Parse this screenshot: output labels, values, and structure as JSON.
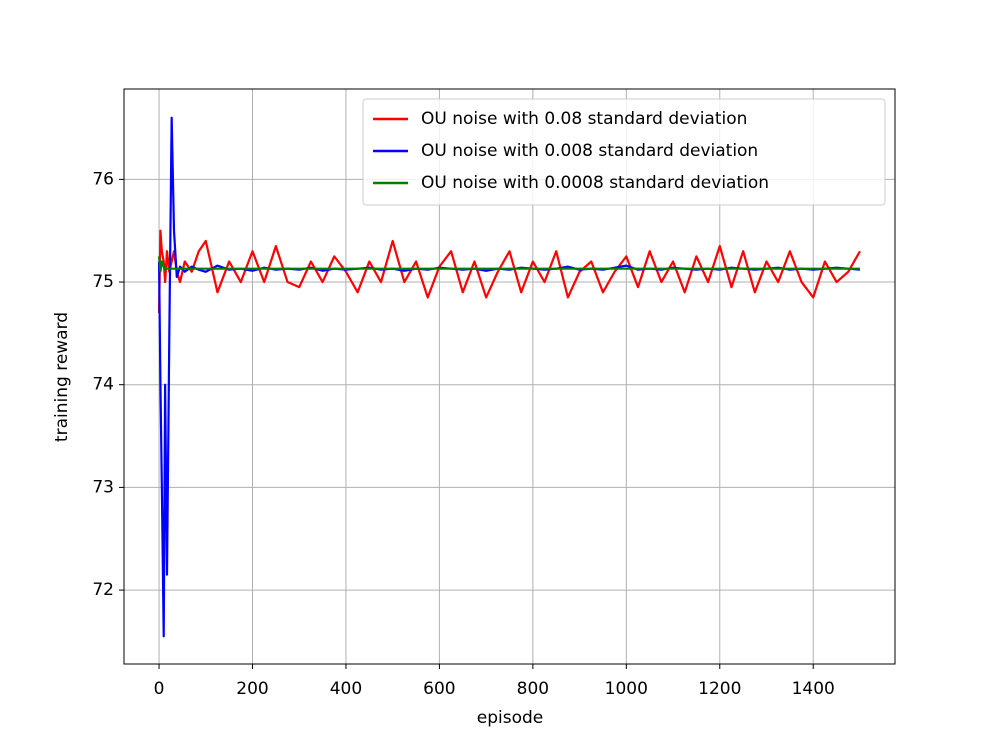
{
  "chart_data": {
    "type": "line",
    "xlabel": "episode",
    "ylabel": "training reward",
    "x": [
      0,
      3,
      6,
      10,
      13,
      17,
      22,
      27,
      32,
      38,
      45,
      55,
      70,
      85,
      100,
      125,
      150,
      175,
      200,
      225,
      250,
      275,
      300,
      325,
      350,
      375,
      400,
      425,
      450,
      475,
      500,
      525,
      550,
      575,
      600,
      625,
      650,
      675,
      700,
      725,
      750,
      775,
      800,
      825,
      850,
      875,
      900,
      925,
      950,
      975,
      1000,
      1025,
      1050,
      1075,
      1100,
      1125,
      1150,
      1175,
      1200,
      1225,
      1250,
      1275,
      1300,
      1325,
      1350,
      1375,
      1400,
      1425,
      1450,
      1475,
      1500
    ],
    "series": [
      {
        "name": "OU noise with 0.08 standard deviation",
        "color": "#ff0000",
        "values": [
          74.7,
          75.5,
          75.3,
          75.2,
          75.0,
          75.3,
          75.1,
          75.2,
          75.3,
          75.1,
          75.0,
          75.2,
          75.1,
          75.3,
          75.4,
          74.9,
          75.2,
          75.0,
          75.3,
          75.0,
          75.35,
          75.0,
          74.95,
          75.2,
          75.0,
          75.25,
          75.1,
          74.9,
          75.2,
          75.0,
          75.4,
          75.0,
          75.2,
          74.85,
          75.15,
          75.3,
          74.9,
          75.2,
          74.85,
          75.1,
          75.3,
          74.9,
          75.2,
          75.0,
          75.3,
          74.85,
          75.1,
          75.2,
          74.9,
          75.1,
          75.25,
          74.95,
          75.3,
          75.0,
          75.2,
          74.9,
          75.25,
          75.0,
          75.35,
          74.95,
          75.3,
          74.9,
          75.2,
          75.0,
          75.3,
          75.0,
          74.85,
          75.2,
          75.0,
          75.1,
          75.3
        ]
      },
      {
        "name": "OU noise with 0.008 standard deviation",
        "color": "#0000ff",
        "values": [
          75.2,
          74.0,
          73.0,
          71.55,
          74.0,
          72.15,
          74.5,
          76.6,
          75.5,
          75.05,
          75.15,
          75.1,
          75.15,
          75.12,
          75.1,
          75.16,
          75.12,
          75.13,
          75.11,
          75.14,
          75.12,
          75.13,
          75.12,
          75.14,
          75.11,
          75.13,
          75.12,
          75.13,
          75.14,
          75.12,
          75.13,
          75.11,
          75.13,
          75.12,
          75.14,
          75.13,
          75.12,
          75.13,
          75.11,
          75.13,
          75.12,
          75.14,
          75.13,
          75.12,
          75.13,
          75.15,
          75.12,
          75.13,
          75.12,
          75.14,
          75.16,
          75.12,
          75.13,
          75.12,
          75.14,
          75.13,
          75.12,
          75.13,
          75.12,
          75.14,
          75.13,
          75.12,
          75.13,
          75.14,
          75.12,
          75.13,
          75.12,
          75.13,
          75.14,
          75.13,
          75.12
        ]
      },
      {
        "name": "OU noise with 0.0008 standard deviation",
        "color": "#008000",
        "values": [
          75.25,
          75.1,
          75.2,
          75.15,
          75.12,
          75.13,
          75.13,
          75.13,
          75.13,
          75.13,
          75.13,
          75.13,
          75.13,
          75.13,
          75.13,
          75.13,
          75.13,
          75.13,
          75.13,
          75.13,
          75.13,
          75.13,
          75.13,
          75.13,
          75.13,
          75.13,
          75.13,
          75.13,
          75.13,
          75.13,
          75.13,
          75.13,
          75.13,
          75.13,
          75.13,
          75.13,
          75.13,
          75.13,
          75.13,
          75.13,
          75.13,
          75.13,
          75.13,
          75.13,
          75.13,
          75.13,
          75.13,
          75.13,
          75.13,
          75.13,
          75.13,
          75.13,
          75.13,
          75.13,
          75.13,
          75.13,
          75.13,
          75.13,
          75.13,
          75.13,
          75.13,
          75.13,
          75.13,
          75.13,
          75.13,
          75.13,
          75.13,
          75.13,
          75.13,
          75.13,
          75.13
        ]
      }
    ],
    "xlim": [
      -75,
      1575
    ],
    "xticks": [
      0,
      200,
      400,
      600,
      800,
      1000,
      1200,
      1400
    ],
    "ylim": [
      71.28,
      76.88
    ],
    "yticks": [
      72,
      73,
      74,
      75,
      76
    ],
    "grid": true,
    "legend": "upper right"
  }
}
